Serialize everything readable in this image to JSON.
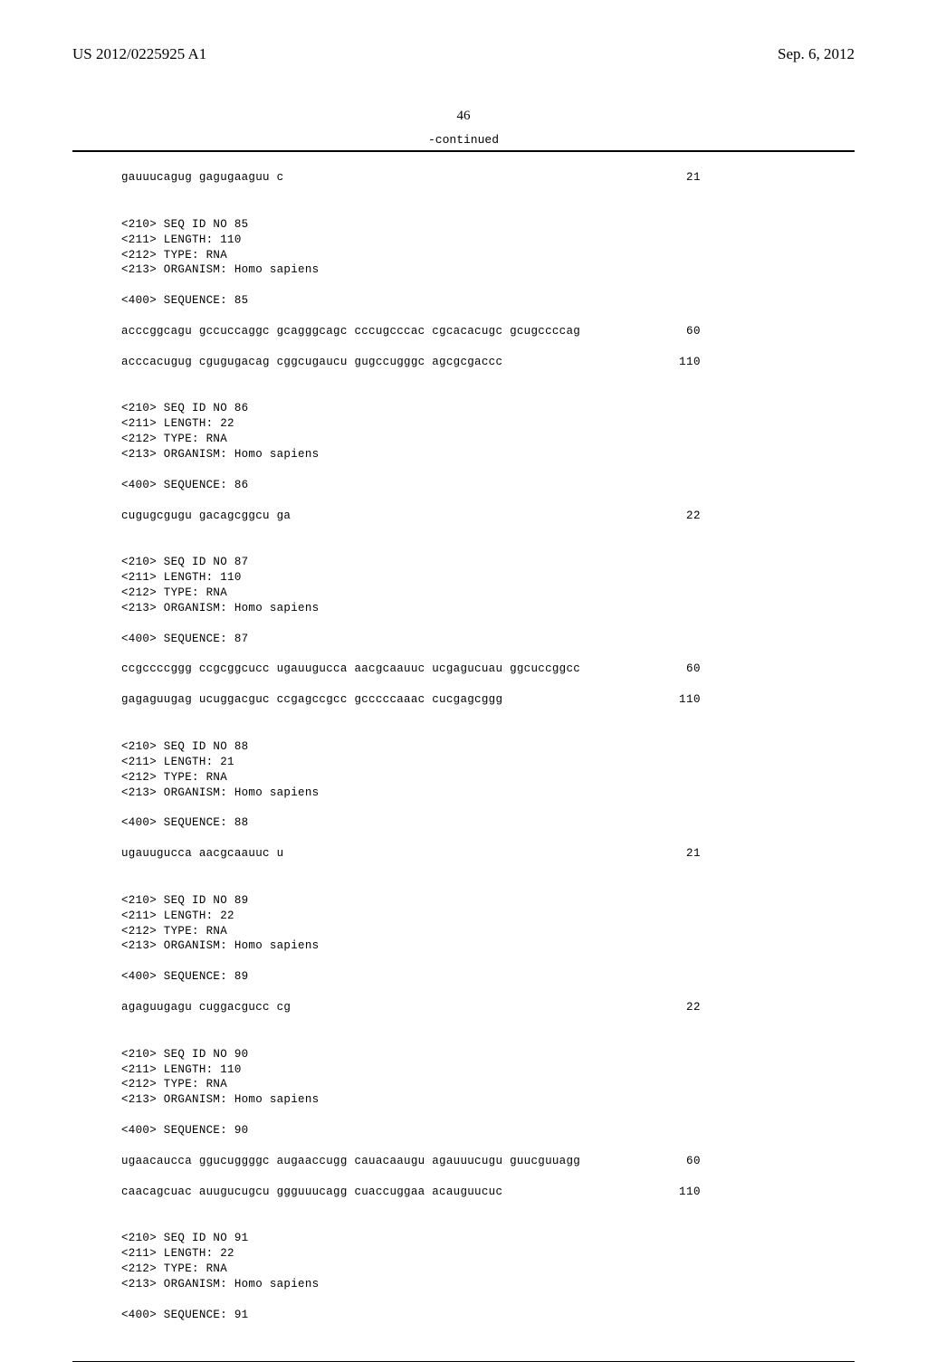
{
  "header": {
    "pub_id": "US 2012/0225925 A1",
    "pub_date": "Sep. 6, 2012",
    "page_number": "46",
    "continued": "-continued"
  },
  "sequences": [
    {
      "meta": [],
      "lines": [
        {
          "text": "gauuucagug gagugaaguu c",
          "num": "21"
        }
      ]
    },
    {
      "meta": [
        "<210> SEQ ID NO 85",
        "<211> LENGTH: 110",
        "<212> TYPE: RNA",
        "<213> ORGANISM: Homo sapiens",
        "",
        "<400> SEQUENCE: 85"
      ],
      "lines": [
        {
          "text": "acccggcagu gccuccaggc gcagggcagc cccugcccac cgcacacugc gcugccccag",
          "num": "60"
        },
        {
          "text": "acccacugug cgugugacag cggcugaucu gugccugggc agcgcgaccc",
          "num": "110"
        }
      ]
    },
    {
      "meta": [
        "<210> SEQ ID NO 86",
        "<211> LENGTH: 22",
        "<212> TYPE: RNA",
        "<213> ORGANISM: Homo sapiens",
        "",
        "<400> SEQUENCE: 86"
      ],
      "lines": [
        {
          "text": "cugugcgugu gacagcggcu ga",
          "num": "22"
        }
      ]
    },
    {
      "meta": [
        "<210> SEQ ID NO 87",
        "<211> LENGTH: 110",
        "<212> TYPE: RNA",
        "<213> ORGANISM: Homo sapiens",
        "",
        "<400> SEQUENCE: 87"
      ],
      "lines": [
        {
          "text": "ccgccccggg ccgcggcucc ugauugucca aacgcaauuc ucgagucuau ggcuccggcc",
          "num": "60"
        },
        {
          "text": "gagaguugag ucuggacguc ccgagccgcc gcccccaaac cucgagcggg",
          "num": "110"
        }
      ]
    },
    {
      "meta": [
        "<210> SEQ ID NO 88",
        "<211> LENGTH: 21",
        "<212> TYPE: RNA",
        "<213> ORGANISM: Homo sapiens",
        "",
        "<400> SEQUENCE: 88"
      ],
      "lines": [
        {
          "text": "ugauugucca aacgcaauuc u",
          "num": "21"
        }
      ]
    },
    {
      "meta": [
        "<210> SEQ ID NO 89",
        "<211> LENGTH: 22",
        "<212> TYPE: RNA",
        "<213> ORGANISM: Homo sapiens",
        "",
        "<400> SEQUENCE: 89"
      ],
      "lines": [
        {
          "text": "agaguugagu cuggacgucc cg",
          "num": "22"
        }
      ]
    },
    {
      "meta": [
        "<210> SEQ ID NO 90",
        "<211> LENGTH: 110",
        "<212> TYPE: RNA",
        "<213> ORGANISM: Homo sapiens",
        "",
        "<400> SEQUENCE: 90"
      ],
      "lines": [
        {
          "text": "ugaacaucca ggucuggggc augaaccugg cauacaaugu agauuucugu guucguuagg",
          "num": "60"
        },
        {
          "text": "caacagcuac auugucugcu ggguuucagg cuaccuggaa acauguucuc",
          "num": "110"
        }
      ]
    },
    {
      "meta": [
        "<210> SEQ ID NO 91",
        "<211> LENGTH: 22",
        "<212> TYPE: RNA",
        "<213> ORGANISM: Homo sapiens",
        "",
        "<400> SEQUENCE: 91"
      ],
      "lines": []
    }
  ]
}
